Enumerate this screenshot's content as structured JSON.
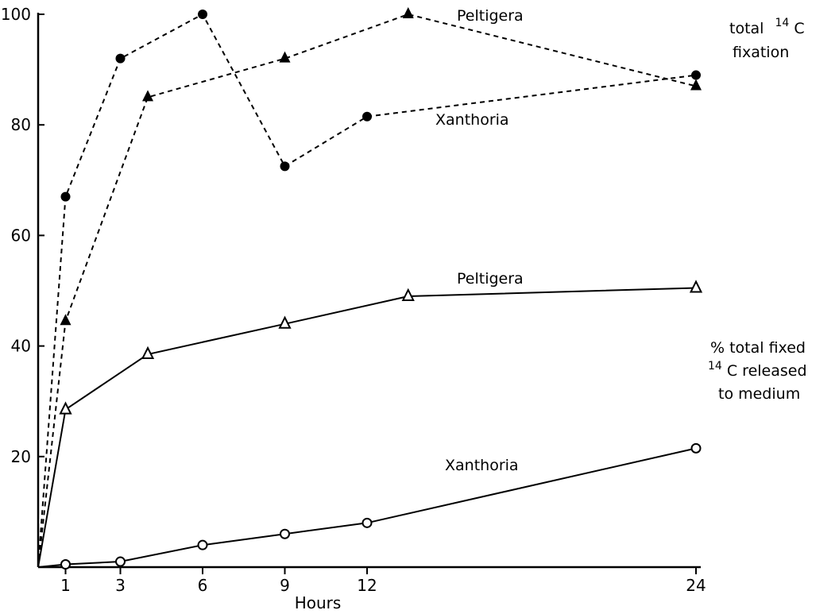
{
  "chart_data": {
    "type": "line",
    "title": "",
    "xlabel": "Hours",
    "ylabel": "",
    "x_ticks": [
      1,
      3,
      6,
      9,
      12,
      24
    ],
    "y_ticks": [
      20,
      40,
      60,
      80,
      100
    ],
    "y_top_label": "100",
    "xlim": [
      0,
      24
    ],
    "ylim": [
      0,
      100
    ],
    "grid": false,
    "series": [
      {
        "name": "Peltigera",
        "group": "total 14C fixation",
        "style": "dashed",
        "marker": "filled-triangle",
        "x": [
          0,
          1,
          4,
          9,
          13.5,
          24
        ],
        "y": [
          0,
          44.5,
          85,
          92,
          100,
          87
        ]
      },
      {
        "name": "Xanthoria",
        "group": "total 14C fixation",
        "style": "dashed",
        "marker": "filled-circle",
        "x": [
          0,
          1,
          3,
          6,
          9,
          12,
          24
        ],
        "y": [
          0,
          67,
          92,
          100,
          72.5,
          81.5,
          89
        ]
      },
      {
        "name": "Peltigera",
        "group": "% total fixed 14C released to medium",
        "style": "solid",
        "marker": "open-triangle",
        "x": [
          0,
          1,
          4,
          9,
          13.5,
          24
        ],
        "y": [
          0,
          28.5,
          38.5,
          44,
          49,
          50.5
        ]
      },
      {
        "name": "Xanthoria",
        "group": "% total fixed 14C released to medium",
        "style": "solid",
        "marker": "open-circle",
        "x": [
          0,
          1,
          3,
          6,
          9,
          12,
          24
        ],
        "y": [
          0,
          0.5,
          1,
          4,
          6,
          8,
          21.5
        ]
      }
    ],
    "annotations": {
      "total_line1_prefix": "total",
      "total_line1_sup": "14",
      "total_line1_suffix": "C",
      "total_line2": "fixation",
      "released_line1": "% total fixed",
      "released_line2_sup": "14",
      "released_line2_suffix": "C released",
      "released_line3": "to medium"
    }
  }
}
